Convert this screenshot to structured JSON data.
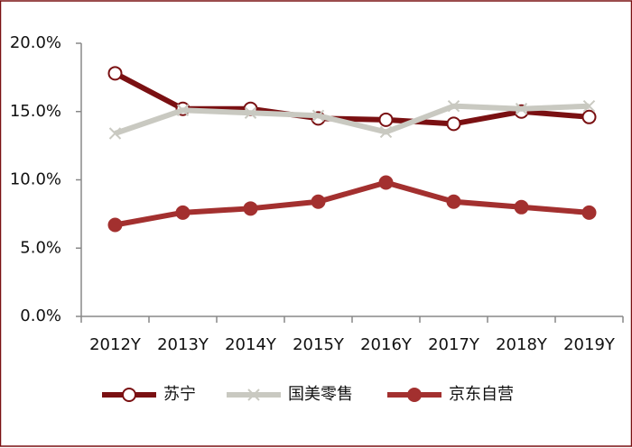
{
  "chart_data": {
    "type": "line",
    "categories": [
      "2012Y",
      "2013Y",
      "2014Y",
      "2015Y",
      "2016Y",
      "2017Y",
      "2018Y",
      "2019Y"
    ],
    "series": [
      {
        "name": "苏宁",
        "color": "#7a1012",
        "marker": "open-circle",
        "values": [
          17.8,
          15.2,
          15.2,
          14.5,
          14.4,
          14.1,
          15.0,
          14.6
        ]
      },
      {
        "name": "国美零售",
        "color": "#c9c9c1",
        "marker": "x",
        "values": [
          13.4,
          15.1,
          14.9,
          14.7,
          13.5,
          15.4,
          15.2,
          15.4
        ]
      },
      {
        "name": "京东自营",
        "color": "#a3302f",
        "marker": "circle",
        "values": [
          6.7,
          7.6,
          7.9,
          8.4,
          9.8,
          8.4,
          8.0,
          7.6
        ]
      }
    ],
    "ylim": [
      0,
      20
    ],
    "yticks": [
      {
        "value": 0,
        "label": "0.0%"
      },
      {
        "value": 5,
        "label": "5.0%"
      },
      {
        "value": 10,
        "label": "10.0%"
      },
      {
        "value": 15,
        "label": "15.0%"
      },
      {
        "value": 20,
        "label": "20.0%"
      }
    ],
    "grid": false,
    "legend": "bottom"
  }
}
